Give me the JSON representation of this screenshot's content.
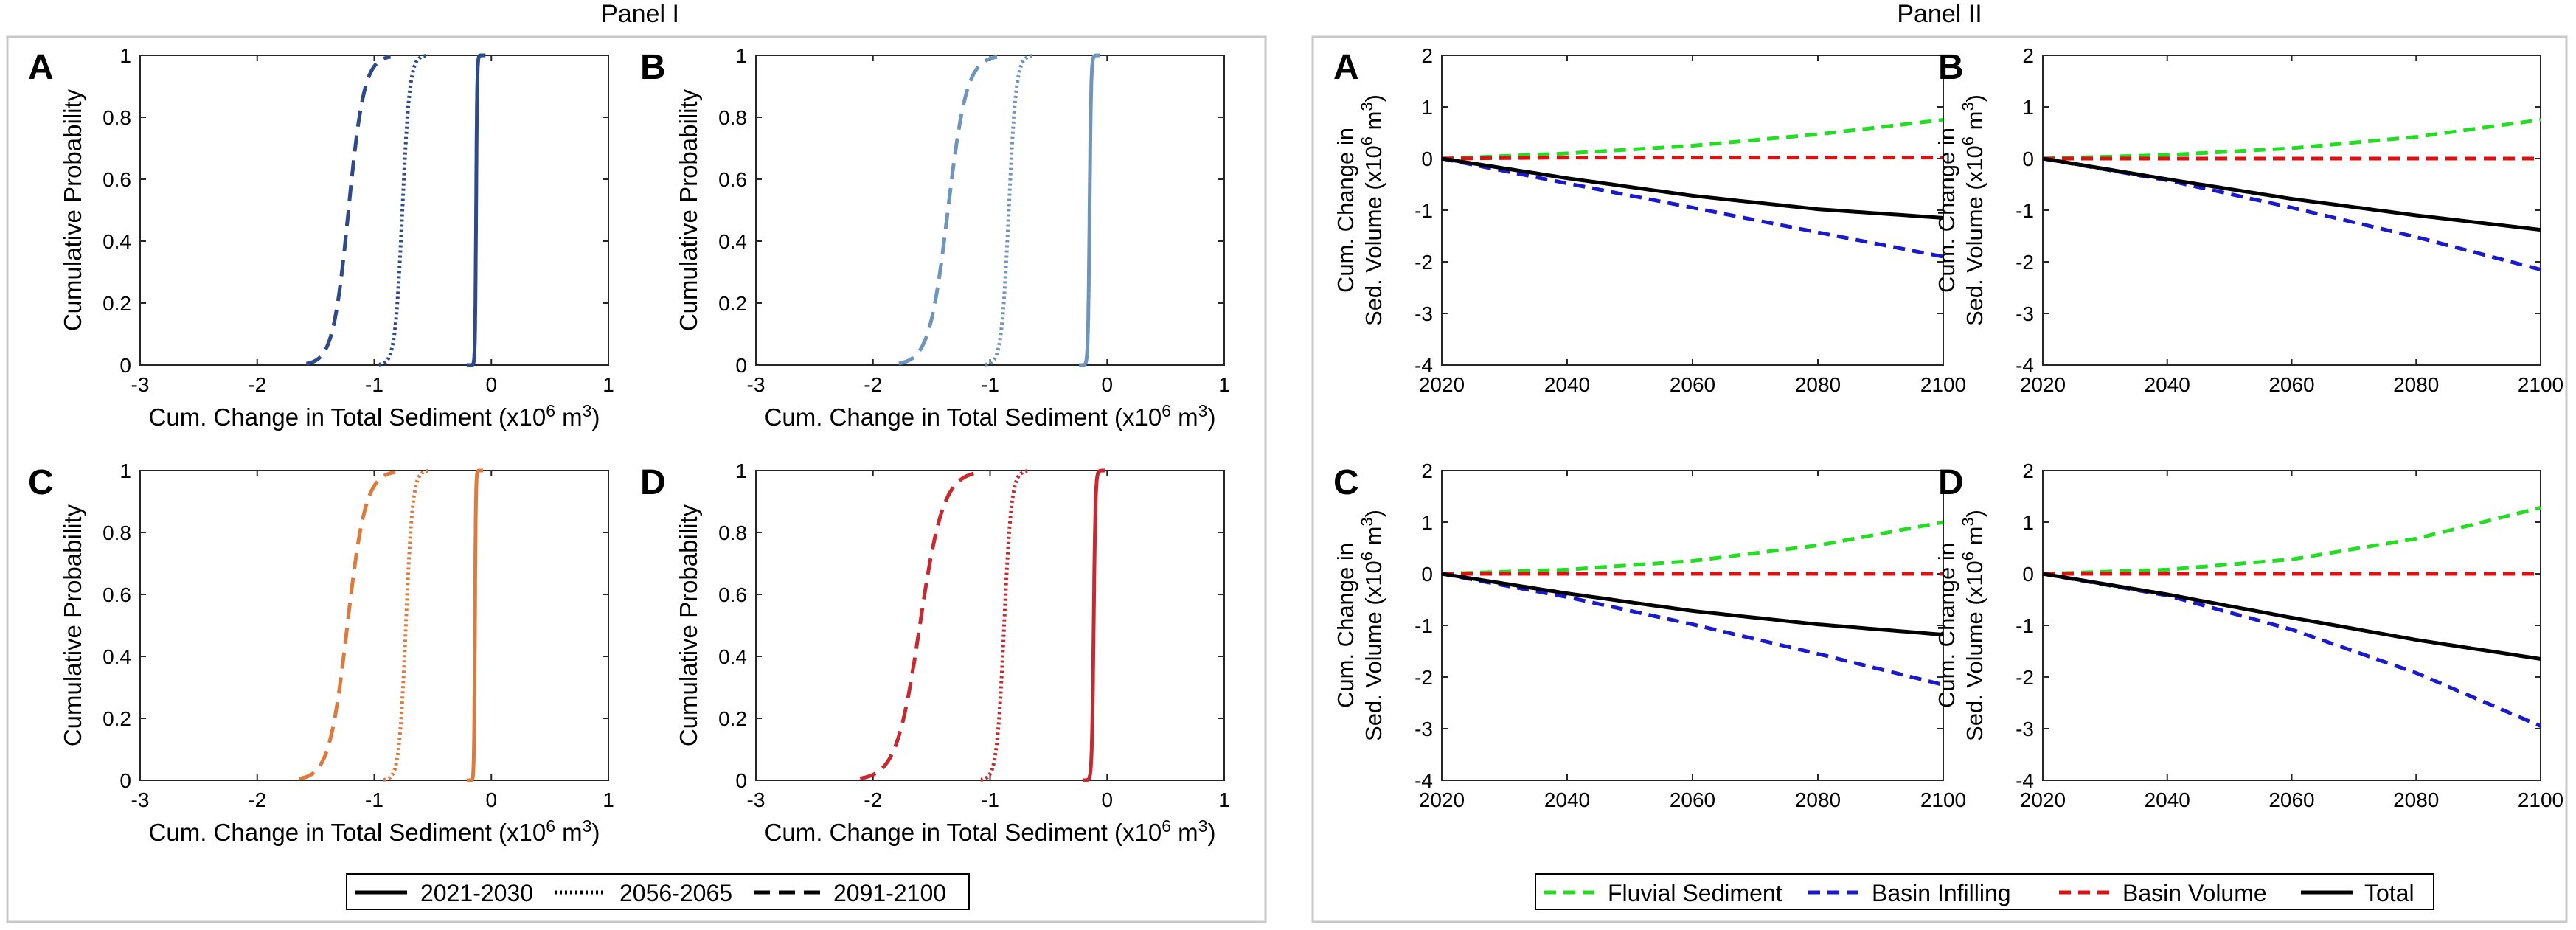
{
  "panel1": {
    "title": "Panel I",
    "legend": [
      {
        "label": "2021-2030",
        "style": "solid"
      },
      {
        "label": "2056-2065",
        "style": "dotted"
      },
      {
        "label": "2091-2100",
        "style": "dashed"
      }
    ]
  },
  "panel2": {
    "title": "Panel II",
    "legend": [
      {
        "label": "Fluvial Sediment",
        "color": "#22dd22",
        "style": "dashed"
      },
      {
        "label": "Basin Infilling",
        "color": "#1a1acc",
        "style": "dashed"
      },
      {
        "label": "Basin Volume",
        "color": "#dd1111",
        "style": "dashed"
      },
      {
        "label": "Total",
        "color": "#000000",
        "style": "solid"
      }
    ]
  },
  "chart_data": [
    {
      "id": "I-A",
      "panel": "Panel I",
      "letter": "A",
      "type": "line",
      "color": "#2e4a8a",
      "xlabel": "Cum. Change in Total Sediment (x10",
      "xlabel_sup": "6",
      "xlabel_tail": " m",
      "xlabel_sup2": "3",
      "xlabel_end": ")",
      "ylabel": "Cumulative Probability",
      "xlim": [
        -3,
        1
      ],
      "ylim": [
        0,
        1
      ],
      "xticks": [
        "-3",
        "-2",
        "-1",
        "0",
        "1"
      ],
      "yticks": [
        "0",
        "0.2",
        "0.4",
        "0.6",
        "0.8",
        "1"
      ],
      "series": [
        {
          "name": "2021-2030",
          "style": "solid",
          "start": -0.15,
          "end": -0.11
        },
        {
          "name": "2056-2065",
          "style": "dotted",
          "start": -0.9,
          "end": -0.62
        },
        {
          "name": "2091-2100",
          "style": "dashed",
          "start": -1.52,
          "end": -0.92
        }
      ]
    },
    {
      "id": "I-B",
      "panel": "Panel I",
      "letter": "B",
      "type": "line",
      "color": "#6f95bf",
      "xlabel": "Cum. Change in Total Sediment (x10",
      "xlabel_sup": "6",
      "xlabel_tail": " m",
      "xlabel_sup2": "3",
      "xlabel_end": ")",
      "ylabel": "Cumulative Probability",
      "xlim": [
        -3,
        1
      ],
      "ylim": [
        0,
        1
      ],
      "xticks": [
        "-3",
        "-2",
        "-1",
        "0",
        "1"
      ],
      "yticks": [
        "0",
        "0.2",
        "0.4",
        "0.6",
        "0.8",
        "1"
      ],
      "series": [
        {
          "name": "2021-2030",
          "style": "solid",
          "start": -0.18,
          "end": -0.12
        },
        {
          "name": "2056-2065",
          "style": "dotted",
          "start": -0.98,
          "end": -0.7
        },
        {
          "name": "2091-2100",
          "style": "dashed",
          "start": -1.72,
          "end": -1.0
        }
      ]
    },
    {
      "id": "I-C",
      "panel": "Panel I",
      "letter": "C",
      "type": "line",
      "color": "#dd7a3c",
      "xlabel": "Cum. Change in Total Sediment (x10",
      "xlabel_sup": "6",
      "xlabel_tail": " m",
      "xlabel_sup2": "3",
      "xlabel_end": ")",
      "ylabel": "Cumulative Probability",
      "xlim": [
        -3,
        1
      ],
      "ylim": [
        0,
        1
      ],
      "xticks": [
        "-3",
        "-2",
        "-1",
        "0",
        "1"
      ],
      "yticks": [
        "0",
        "0.2",
        "0.4",
        "0.6",
        "0.8",
        "1"
      ],
      "series": [
        {
          "name": "2021-2030",
          "style": "solid",
          "start": -0.15,
          "end": -0.13
        },
        {
          "name": "2056-2065",
          "style": "dotted",
          "start": -0.86,
          "end": -0.6
        },
        {
          "name": "2091-2100",
          "style": "dashed",
          "start": -1.58,
          "end": -0.88
        }
      ]
    },
    {
      "id": "I-D",
      "panel": "Panel I",
      "letter": "D",
      "type": "line",
      "color": "#c9282e",
      "xlabel": "Cum. Change in Total Sediment (x10",
      "xlabel_sup": "6",
      "xlabel_tail": " m",
      "xlabel_sup2": "3",
      "xlabel_end": ")",
      "ylabel": "Cumulative Probability",
      "xlim": [
        -3,
        1
      ],
      "ylim": [
        0,
        1
      ],
      "xticks": [
        "-3",
        "-2",
        "-1",
        "0",
        "1"
      ],
      "yticks": [
        "0",
        "0.2",
        "0.4",
        "0.6",
        "0.8",
        "1"
      ],
      "series": [
        {
          "name": "2021-2030",
          "style": "solid",
          "start": -0.15,
          "end": -0.08
        },
        {
          "name": "2056-2065",
          "style": "dotted",
          "start": -1.02,
          "end": -0.74
        },
        {
          "name": "2091-2100",
          "style": "dashed",
          "start": -2.05,
          "end": -1.15
        }
      ]
    },
    {
      "id": "II-A",
      "panel": "Panel II",
      "letter": "A",
      "type": "line",
      "ylabel_top": "Cum. Change in",
      "ylabel_bottom": "Sed. Volume (x10",
      "ylabel_sup": "6",
      "ylabel_tail": " m",
      "ylabel_sup2": "3",
      "ylabel_end": ")",
      "xlim": [
        2020,
        2100
      ],
      "ylim": [
        -4,
        2
      ],
      "xticks": [
        "2020",
        "2040",
        "2060",
        "2080",
        "2100"
      ],
      "yticks": [
        "-4",
        "-3",
        "-2",
        "-1",
        "0",
        "1",
        "2"
      ],
      "x": [
        2020,
        2040,
        2060,
        2080,
        2100
      ],
      "series": [
        {
          "name": "Fluvial Sediment",
          "values": [
            0,
            0.1,
            0.25,
            0.47,
            0.75
          ]
        },
        {
          "name": "Basin Infilling",
          "values": [
            0,
            -0.48,
            -0.95,
            -1.43,
            -1.9
          ]
        },
        {
          "name": "Basin Volume",
          "values": [
            0,
            0.02,
            0.02,
            0.02,
            0.02
          ]
        },
        {
          "name": "Total",
          "values": [
            0,
            -0.38,
            -0.72,
            -0.98,
            -1.15
          ]
        }
      ]
    },
    {
      "id": "II-B",
      "panel": "Panel II",
      "letter": "B",
      "type": "line",
      "ylabel_top": "Cum. Change in",
      "ylabel_bottom": "Sed. Volume (x10",
      "ylabel_sup": "6",
      "ylabel_tail": " m",
      "ylabel_sup2": "3",
      "ylabel_end": ")",
      "xlim": [
        2020,
        2100
      ],
      "ylim": [
        -4,
        2
      ],
      "xticks": [
        "2020",
        "2040",
        "2060",
        "2080",
        "2100"
      ],
      "yticks": [
        "-4",
        "-3",
        "-2",
        "-1",
        "0",
        "1",
        "2"
      ],
      "x": [
        2020,
        2040,
        2060,
        2080,
        2100
      ],
      "series": [
        {
          "name": "Fluvial Sediment",
          "values": [
            0,
            0.07,
            0.2,
            0.42,
            0.75
          ]
        },
        {
          "name": "Basin Infilling",
          "values": [
            0,
            -0.42,
            -0.95,
            -1.52,
            -2.15
          ]
        },
        {
          "name": "Basin Volume",
          "values": [
            0,
            0.0,
            0.0,
            0.0,
            0.0
          ]
        },
        {
          "name": "Total",
          "values": [
            0,
            -0.4,
            -0.78,
            -1.1,
            -1.38
          ]
        }
      ]
    },
    {
      "id": "II-C",
      "panel": "Panel II",
      "letter": "C",
      "type": "line",
      "ylabel_top": "Cum. Change in",
      "ylabel_bottom": "Sed. Volume (x10",
      "ylabel_sup": "6",
      "ylabel_tail": " m",
      "ylabel_sup2": "3",
      "ylabel_end": ")",
      "xlim": [
        2020,
        2100
      ],
      "ylim": [
        -4,
        2
      ],
      "xticks": [
        "2020",
        "2040",
        "2060",
        "2080",
        "2100"
      ],
      "yticks": [
        "-4",
        "-3",
        "-2",
        "-1",
        "0",
        "1",
        "2"
      ],
      "x": [
        2020,
        2040,
        2060,
        2080,
        2100
      ],
      "series": [
        {
          "name": "Fluvial Sediment",
          "values": [
            0,
            0.08,
            0.25,
            0.55,
            1.0
          ]
        },
        {
          "name": "Basin Infilling",
          "values": [
            0,
            -0.45,
            -0.98,
            -1.55,
            -2.15
          ]
        },
        {
          "name": "Basin Volume",
          "values": [
            0,
            0.0,
            0.0,
            0.0,
            0.0
          ]
        },
        {
          "name": "Total",
          "values": [
            0,
            -0.38,
            -0.72,
            -0.98,
            -1.18
          ]
        }
      ]
    },
    {
      "id": "II-D",
      "panel": "Panel II",
      "letter": "D",
      "type": "line",
      "ylabel_top": "Cum. Change in",
      "ylabel_bottom": "Sed. Volume (x10",
      "ylabel_sup": "6",
      "ylabel_tail": " m",
      "ylabel_sup2": "3",
      "ylabel_end": ")",
      "xlim": [
        2020,
        2100
      ],
      "ylim": [
        -4,
        2
      ],
      "xticks": [
        "2020",
        "2040",
        "2060",
        "2080",
        "2100"
      ],
      "yticks": [
        "-4",
        "-3",
        "-2",
        "-1",
        "0",
        "1",
        "2"
      ],
      "x": [
        2020,
        2040,
        2060,
        2080,
        2100
      ],
      "series": [
        {
          "name": "Fluvial Sediment",
          "values": [
            0,
            0.08,
            0.28,
            0.68,
            1.28
          ]
        },
        {
          "name": "Basin Infilling",
          "values": [
            0,
            -0.42,
            -1.08,
            -1.92,
            -2.95
          ]
        },
        {
          "name": "Basin Volume",
          "values": [
            0,
            0.0,
            0.0,
            0.0,
            0.0
          ]
        },
        {
          "name": "Total",
          "values": [
            0,
            -0.4,
            -0.85,
            -1.28,
            -1.65
          ]
        }
      ]
    }
  ]
}
